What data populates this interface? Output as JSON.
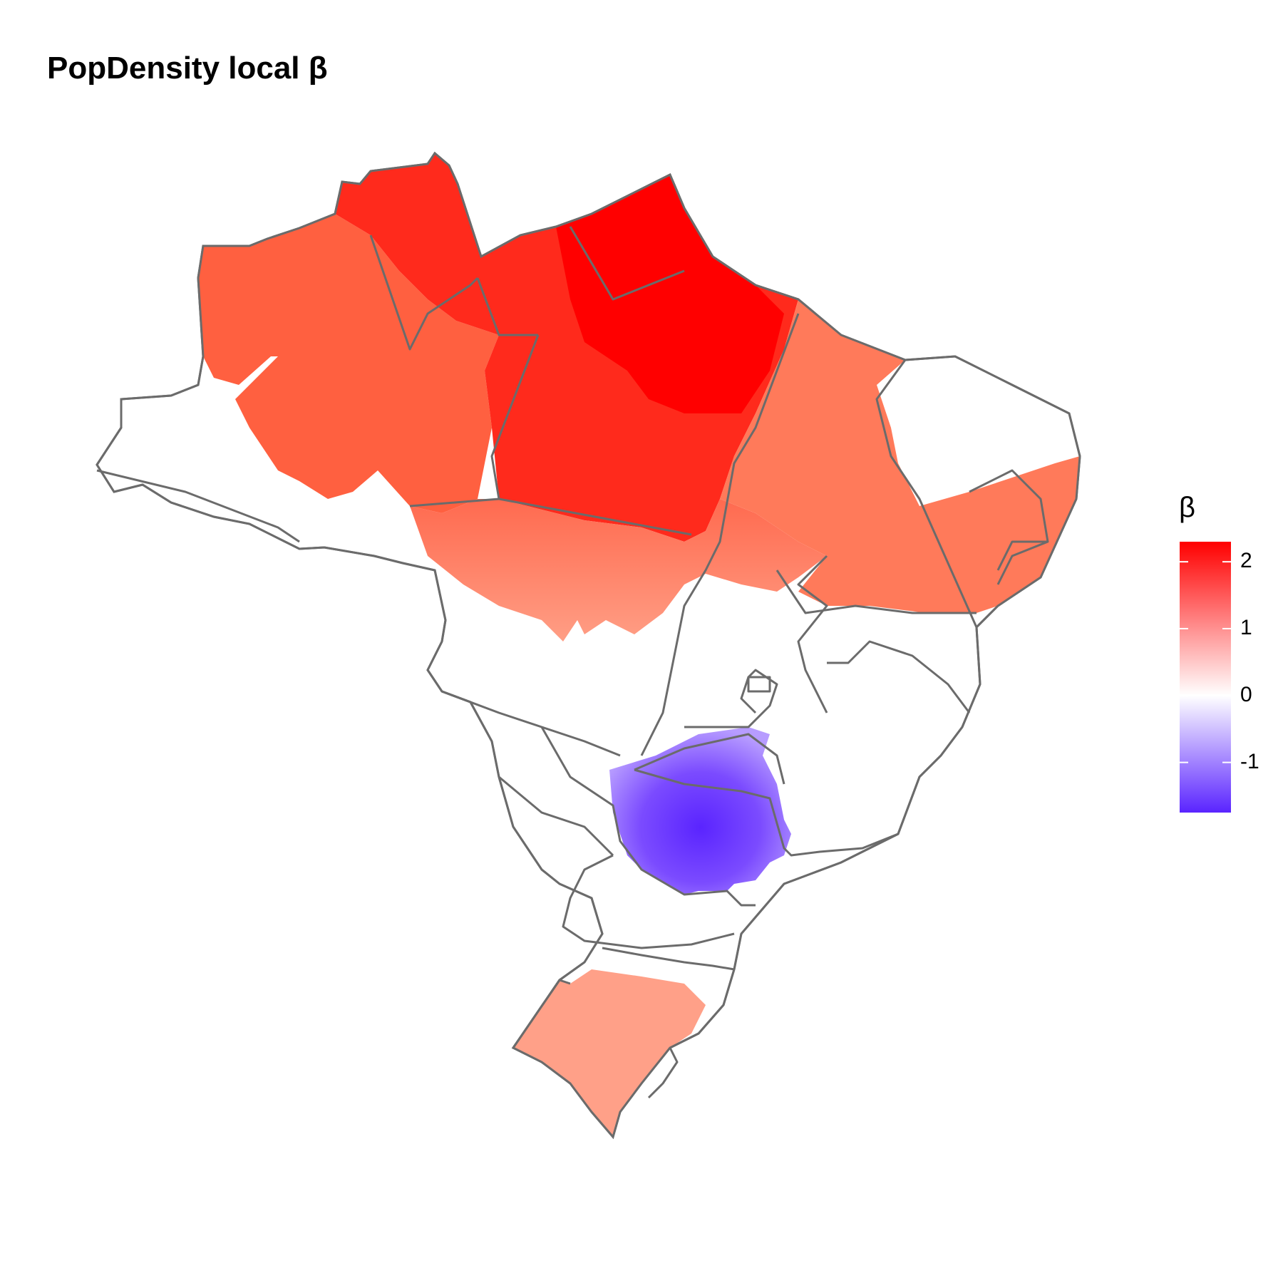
{
  "title": "PopDensity local β",
  "legend": {
    "title": "β",
    "ticks": [
      "2",
      "1",
      "0",
      "-1"
    ],
    "range": [
      -1.75,
      2.3
    ],
    "colors": {
      "low": "#5a24ff",
      "mid": "#ffffff",
      "high": "#ff0000"
    }
  },
  "map": {
    "boundary_color": "#6b6b6b",
    "no_data_color": "#ffffff"
  },
  "chart_data": {
    "type": "choropleth",
    "title": "PopDensity local β",
    "legend_title": "β",
    "legend_ticks": [
      2,
      1,
      0,
      -1
    ],
    "value_range": [
      -1.75,
      2.3
    ],
    "regions": [
      {
        "area": "far north",
        "beta": 2.2
      },
      {
        "area": "north",
        "beta": 1.9
      },
      {
        "area": "northwest",
        "beta": 1.3
      },
      {
        "area": "north-central band",
        "beta": 0.9
      },
      {
        "area": "northeast",
        "beta": 1.2
      },
      {
        "area": "east coast",
        "beta": 0.8
      },
      {
        "area": "south",
        "beta": 0.7
      },
      {
        "area": "south-central",
        "beta": -1.6
      }
    ]
  }
}
